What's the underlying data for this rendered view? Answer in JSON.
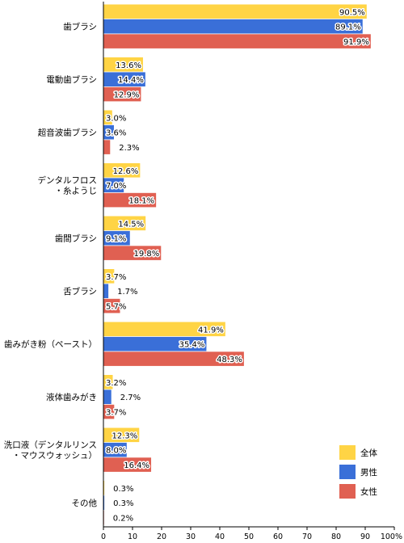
{
  "chart_data": {
    "type": "bar",
    "orientation": "horizontal",
    "categories": [
      [
        "歯ブラシ"
      ],
      [
        "電動歯ブラシ"
      ],
      [
        "超音波歯ブラシ"
      ],
      [
        "デンタルフロス",
        "・糸ようじ"
      ],
      [
        "歯間ブラシ"
      ],
      [
        "舌ブラシ"
      ],
      [
        "歯みがき粉（ペースト）"
      ],
      [
        "液体歯みがき"
      ],
      [
        "洗口液（デンタルリンス",
        "・マウスウォッシュ）"
      ],
      [
        "その他"
      ]
    ],
    "series": [
      {
        "name": "全体",
        "color": "#ffd445",
        "values": [
          90.5,
          13.6,
          3.0,
          12.6,
          14.5,
          3.7,
          41.9,
          3.2,
          12.3,
          0.3
        ],
        "labels": [
          "90.5%",
          "13.6%",
          "3.0%",
          "12.6%",
          "14.5%",
          "3.7%",
          "41.9%",
          "3.2%",
          "12.3%",
          "0.3%"
        ]
      },
      {
        "name": "男性",
        "color": "#3a6fd8",
        "values": [
          89.1,
          14.4,
          3.6,
          7.0,
          9.1,
          1.7,
          35.4,
          2.7,
          8.0,
          0.3
        ],
        "labels": [
          "89.1%",
          "14.4%",
          "3.6%",
          "7.0%",
          "9.1%",
          "1.7%",
          "35.4%",
          "2.7%",
          "8.0%",
          "0.3%"
        ]
      },
      {
        "name": "女性",
        "color": "#e06052",
        "values": [
          91.9,
          12.9,
          2.3,
          18.1,
          19.8,
          5.7,
          48.3,
          3.7,
          16.4,
          0.2
        ],
        "labels": [
          "91.9%",
          "12.9%",
          "2.3%",
          "18.1%",
          "19.8%",
          "5.7%",
          "48.3%",
          "3.7%",
          "16.4%",
          "0.2%"
        ]
      }
    ],
    "xlim": [
      0,
      100
    ],
    "xticks": [
      "0",
      "10",
      "20",
      "30",
      "40",
      "50",
      "60",
      "70",
      "80",
      "90",
      "100%"
    ],
    "grid": false,
    "legend_position": "lower-right"
  }
}
